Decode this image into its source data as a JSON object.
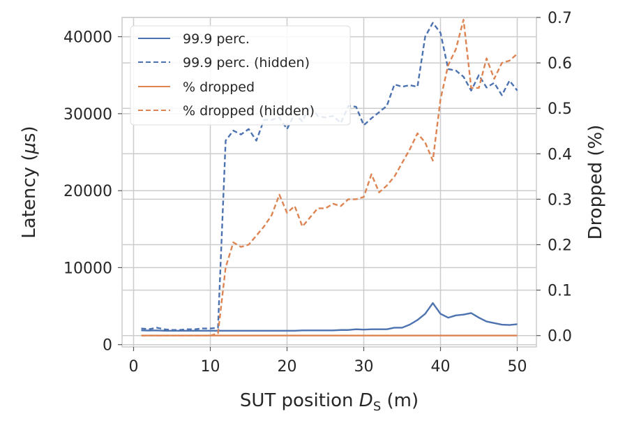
{
  "chart_data": {
    "type": "line",
    "xlabel_main": "SUT position ",
    "xlabel_var": "D",
    "xlabel_sub": "S",
    "xlabel_unit": " (m)",
    "ylabel_left_main": "Latency (",
    "ylabel_left_mu": "μ",
    "ylabel_left_unit": "s)",
    "ylabel_right": "Dropped (%)",
    "xlim": [
      -1.5,
      52.5
    ],
    "ylim_left": [
      -300,
      42500
    ],
    "ylim_right": [
      -0.025,
      0.7
    ],
    "x_ticks": [
      0,
      10,
      20,
      30,
      40,
      50
    ],
    "y_left_ticks": [
      0,
      10000,
      20000,
      30000,
      40000
    ],
    "y_right_ticks": [
      0.0,
      0.1,
      0.2,
      0.3,
      0.4,
      0.5,
      0.6,
      0.7
    ],
    "grid": true,
    "legend_position": "top-left",
    "x": [
      1,
      2,
      3,
      4,
      5,
      6,
      7,
      8,
      9,
      10,
      11,
      12,
      13,
      14,
      15,
      16,
      17,
      18,
      19,
      20,
      21,
      22,
      23,
      24,
      25,
      26,
      27,
      28,
      29,
      30,
      31,
      32,
      33,
      34,
      35,
      36,
      37,
      38,
      39,
      40,
      41,
      42,
      43,
      44,
      45,
      46,
      47,
      48,
      49,
      50
    ],
    "series": [
      {
        "name": "99.9 perc.",
        "axis": "left",
        "style": "solid",
        "color": "#4C72B0",
        "values": [
          1850,
          1830,
          1850,
          1800,
          1800,
          1800,
          1800,
          1800,
          1800,
          1800,
          1800,
          1800,
          1800,
          1800,
          1800,
          1800,
          1800,
          1800,
          1800,
          1800,
          1800,
          1850,
          1850,
          1850,
          1850,
          1850,
          1900,
          1900,
          2000,
          1950,
          2000,
          2000,
          2000,
          2200,
          2200,
          2600,
          3200,
          4000,
          5400,
          4000,
          3500,
          3800,
          3900,
          4100,
          3500,
          3000,
          2800,
          2600,
          2550,
          2650
        ]
      },
      {
        "name": "99.9 perc. (hidden)",
        "axis": "left",
        "style": "dashed",
        "color": "#4C72B0",
        "values": [
          2100,
          2000,
          2200,
          2000,
          1900,
          1900,
          2000,
          2000,
          2100,
          2100,
          2200,
          26500,
          27800,
          27300,
          28000,
          26500,
          29200,
          29200,
          29500,
          28000,
          30000,
          29000,
          31000,
          29700,
          29500,
          29700,
          28800,
          31000,
          30900,
          28500,
          29400,
          30200,
          31000,
          33800,
          33500,
          33700,
          33500,
          40000,
          41800,
          40500,
          35800,
          35600,
          34800,
          33000,
          35000,
          33400,
          34000,
          32400,
          34300,
          33000
        ]
      },
      {
        "name": "% dropped",
        "axis": "right",
        "style": "solid",
        "color": "#DD8452",
        "values": [
          0,
          0,
          0,
          0,
          0,
          0,
          0,
          0,
          0,
          0,
          0,
          0,
          0,
          0,
          0,
          0,
          0,
          0,
          0,
          0,
          0,
          0,
          0,
          0,
          0,
          0,
          0,
          0,
          0,
          0,
          0,
          0,
          0,
          0,
          0,
          0,
          0,
          0,
          0,
          0,
          0,
          0,
          0,
          0,
          0,
          0,
          0,
          0,
          0,
          0
        ]
      },
      {
        "name": "% dropped (hidden)",
        "axis": "right",
        "style": "dashed",
        "color": "#DD8452",
        "values": [
          0,
          0,
          0,
          0,
          0,
          0,
          0,
          0,
          0,
          0,
          0.005,
          0.15,
          0.205,
          0.195,
          0.2,
          0.22,
          0.24,
          0.265,
          0.31,
          0.27,
          0.285,
          0.24,
          0.26,
          0.28,
          0.28,
          0.29,
          0.285,
          0.3,
          0.3,
          0.305,
          0.355,
          0.315,
          0.33,
          0.35,
          0.38,
          0.41,
          0.445,
          0.425,
          0.385,
          0.52,
          0.595,
          0.63,
          0.695,
          0.545,
          0.545,
          0.61,
          0.565,
          0.6,
          0.605,
          0.62
        ]
      }
    ]
  }
}
